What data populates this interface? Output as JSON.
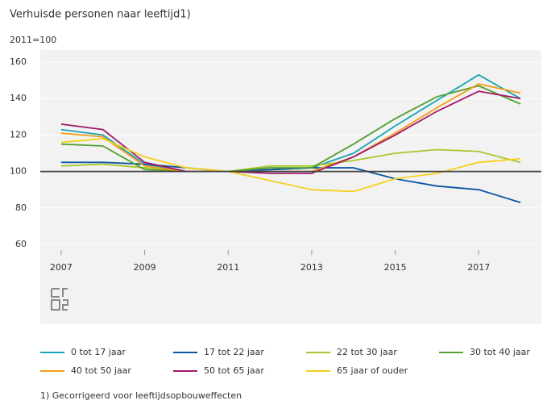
{
  "chart_data": {
    "type": "line",
    "title": "Verhuisde personen naar leeftijd1)",
    "ylabel": "2011=100",
    "footnote": "1) Gecorrigeerd voor leeftijdsopbouweffecten",
    "x": [
      2007,
      2008,
      2009,
      2010,
      2011,
      2012,
      2013,
      2014,
      2015,
      2016,
      2017,
      2018
    ],
    "xlim": [
      2006.5,
      2018.5
    ],
    "xticks": [
      2007,
      2009,
      2011,
      2013,
      2015,
      2017
    ],
    "ylim": [
      60,
      160
    ],
    "yticks": [
      60,
      80,
      100,
      120,
      140,
      160
    ],
    "grid": true,
    "reference_line": 100,
    "series": [
      {
        "name": "0 tot 17 jaar",
        "color": "#1aa3b8",
        "values": [
          123,
          120,
          104,
          100,
          100,
          101,
          102,
          110,
          125,
          139,
          153,
          140
        ]
      },
      {
        "name": "17 tot 22 jaar",
        "color": "#0b56a4",
        "values": [
          105,
          105,
          104,
          102,
          100,
          101,
          102,
          102,
          96,
          92,
          90,
          83
        ]
      },
      {
        "name": "22 tot 30 jaar",
        "color": "#a9c72c",
        "values": [
          103,
          104,
          102,
          100,
          100,
          103,
          103,
          106,
          110,
          112,
          111,
          105
        ]
      },
      {
        "name": "30 tot 40 jaar",
        "color": "#53a031",
        "values": [
          115,
          114,
          101,
          100,
          100,
          102,
          102,
          115,
          129,
          141,
          147,
          137
        ]
      },
      {
        "name": "40 tot 50 jaar",
        "color": "#f39c12",
        "values": [
          121,
          119,
          103,
          100,
          100,
          100,
          100,
          108,
          121,
          135,
          148,
          143
        ]
      },
      {
        "name": "50 tot 65 jaar",
        "color": "#a0196a",
        "values": [
          126,
          123,
          105,
          100,
          100,
          99,
          99,
          108,
          120,
          133,
          144,
          140
        ]
      },
      {
        "name": "65 jaar of ouder",
        "color": "#f5d11d",
        "values": [
          116,
          118,
          108,
          102,
          100,
          95,
          90,
          89,
          96,
          99,
          105,
          107
        ]
      }
    ]
  }
}
